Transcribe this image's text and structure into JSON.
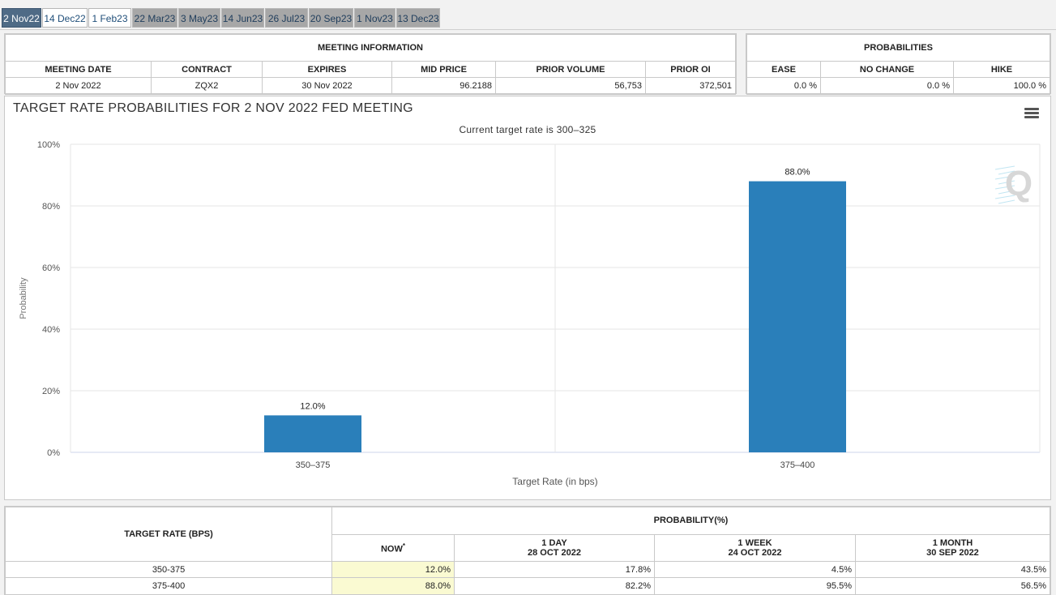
{
  "tabs": [
    {
      "label": "2 Nov22",
      "state": "active"
    },
    {
      "label": "14 Dec22",
      "state": "light"
    },
    {
      "label": "1 Feb23",
      "state": "light"
    },
    {
      "label": "22 Mar23",
      "state": "dark"
    },
    {
      "label": "3 May23",
      "state": "dark"
    },
    {
      "label": "14 Jun23",
      "state": "dark"
    },
    {
      "label": "26 Jul23",
      "state": "dark"
    },
    {
      "label": "20 Sep23",
      "state": "dark"
    },
    {
      "label": "1 Nov23",
      "state": "dark"
    },
    {
      "label": "13 Dec23",
      "state": "dark"
    }
  ],
  "meeting_info": {
    "title": "MEETING INFORMATION",
    "headers": [
      "MEETING DATE",
      "CONTRACT",
      "EXPIRES",
      "MID PRICE",
      "PRIOR VOLUME",
      "PRIOR OI"
    ],
    "values": [
      "2 Nov 2022",
      "ZQX2",
      "30 Nov 2022",
      "96.2188",
      "56,753",
      "372,501"
    ]
  },
  "probabilities": {
    "title": "PROBABILITIES",
    "headers": [
      "EASE",
      "NO CHANGE",
      "HIKE"
    ],
    "values": [
      "0.0 %",
      "0.0 %",
      "100.0 %"
    ]
  },
  "chart_data": {
    "type": "bar",
    "title": "TARGET RATE PROBABILITIES FOR 2 NOV 2022 FED MEETING",
    "subtitle": "Current target rate is 300–325",
    "xlabel": "Target Rate (in bps)",
    "ylabel": "Probability",
    "categories": [
      "350–375",
      "375–400"
    ],
    "values": [
      12.0,
      88.0
    ],
    "data_labels": [
      "12.0%",
      "88.0%"
    ],
    "ylim": [
      0,
      100
    ],
    "yticks": [
      0,
      20,
      40,
      60,
      80,
      100
    ],
    "ytick_labels": [
      "0%",
      "20%",
      "40%",
      "60%",
      "80%",
      "100%"
    ],
    "bar_color": "#2a7fba",
    "grid": true,
    "legend": "none"
  },
  "watermark_icon": "q-logo-icon",
  "bottom_table": {
    "target_header": "TARGET RATE (BPS)",
    "prob_header": "PROBABILITY(%)",
    "cols": [
      {
        "line1": "NOW",
        "line2": "",
        "sup": "*"
      },
      {
        "line1": "1 DAY",
        "line2": "28 OCT 2022",
        "sup": ""
      },
      {
        "line1": "1 WEEK",
        "line2": "24 OCT 2022",
        "sup": ""
      },
      {
        "line1": "1 MONTH",
        "line2": "30 SEP 2022",
        "sup": ""
      }
    ],
    "rows": [
      {
        "rate": "350-375",
        "values": [
          "12.0%",
          "17.8%",
          "4.5%",
          "43.5%"
        ]
      },
      {
        "rate": "375-400",
        "values": [
          "88.0%",
          "82.2%",
          "95.5%",
          "56.5%"
        ]
      }
    ]
  }
}
